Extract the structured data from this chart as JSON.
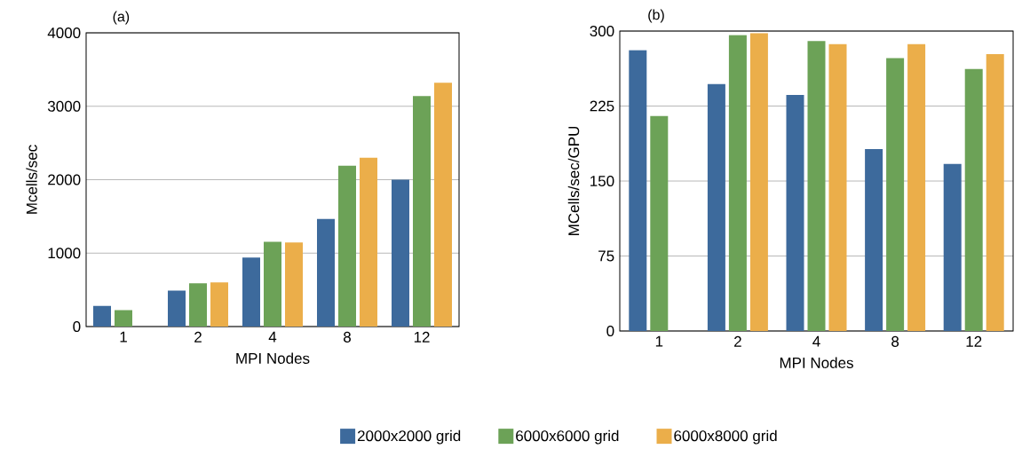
{
  "chart_data": [
    {
      "type": "bar",
      "title": "(a)",
      "xlabel": "MPI Nodes",
      "ylabel": "Mcells/sec",
      "categories": [
        "1",
        "2",
        "4",
        "8",
        "12"
      ],
      "series": [
        {
          "name": "2000x2000 grid",
          "color": "#3d6a9c",
          "values": [
            280,
            490,
            940,
            1465,
            2000
          ]
        },
        {
          "name": "6000x6000 grid",
          "color": "#6ca257",
          "values": [
            225,
            590,
            1155,
            2190,
            3140
          ]
        },
        {
          "name": "6000x8000 grid",
          "color": "#ebae4a",
          "values": [
            null,
            600,
            1145,
            2300,
            3320
          ]
        }
      ],
      "ylim": [
        0,
        4000
      ],
      "yticks": [
        0,
        1000,
        2000,
        3000,
        4000
      ],
      "grid": "y",
      "legend": "bottom"
    },
    {
      "type": "bar",
      "title": "(b)",
      "xlabel": "MPI Nodes",
      "ylabel": "MCells/sec/GPU",
      "categories": [
        "1",
        "2",
        "4",
        "8",
        "12"
      ],
      "series": [
        {
          "color": "#3d6a9c",
          "values": [
            281,
            247,
            236,
            182,
            167
          ]
        },
        {
          "color": "#6ca257",
          "values": [
            215,
            296,
            290,
            273,
            262
          ]
        },
        {
          "color": "#ebae4a",
          "values": [
            null,
            298,
            287,
            287,
            277
          ]
        }
      ],
      "ylim": [
        0,
        300
      ],
      "yticks": [
        0,
        75,
        150,
        225,
        300
      ],
      "grid": "y",
      "legend": false
    }
  ]
}
